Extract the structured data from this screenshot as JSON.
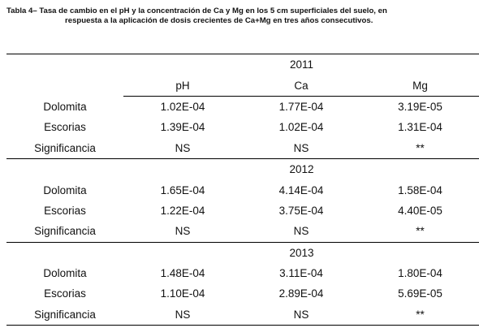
{
  "caption": {
    "line1": "Tabla 4– Tasa de cambio en el pH y la concentración de Ca y Mg en los 5 cm superficiales del suelo, en",
    "line2": "respuesta a la aplicación de dosis crecientes de Ca+Mg en tres años consecutivos."
  },
  "columns": [
    "pH",
    "Ca",
    "Mg"
  ],
  "blocks": [
    {
      "year": "2011",
      "rows": [
        {
          "label": "Dolomita",
          "values": [
            "1.02E-04",
            "1.77E-04",
            "3.19E-05"
          ]
        },
        {
          "label": "Escorias",
          "values": [
            "1.39E-04",
            "1.02E-04",
            "1.31E-04"
          ]
        },
        {
          "label": "Significancia",
          "values": [
            "NS",
            "NS",
            "**"
          ]
        }
      ]
    },
    {
      "year": "2012",
      "rows": [
        {
          "label": "Dolomita",
          "values": [
            "1.65E-04",
            "4.14E-04",
            "1.58E-04"
          ]
        },
        {
          "label": "Escorias",
          "values": [
            "1.22E-04",
            "3.75E-04",
            "4.40E-05"
          ]
        },
        {
          "label": "Significancia",
          "values": [
            "NS",
            "NS",
            "**"
          ]
        }
      ]
    },
    {
      "year": "2013",
      "rows": [
        {
          "label": "Dolomita",
          "values": [
            "1.48E-04",
            "3.11E-04",
            "1.80E-04"
          ]
        },
        {
          "label": "Escorias",
          "values": [
            "1.10E-04",
            "2.89E-04",
            "5.69E-05"
          ]
        },
        {
          "label": "Significancia",
          "values": [
            "NS",
            "NS",
            "**"
          ]
        }
      ]
    }
  ]
}
